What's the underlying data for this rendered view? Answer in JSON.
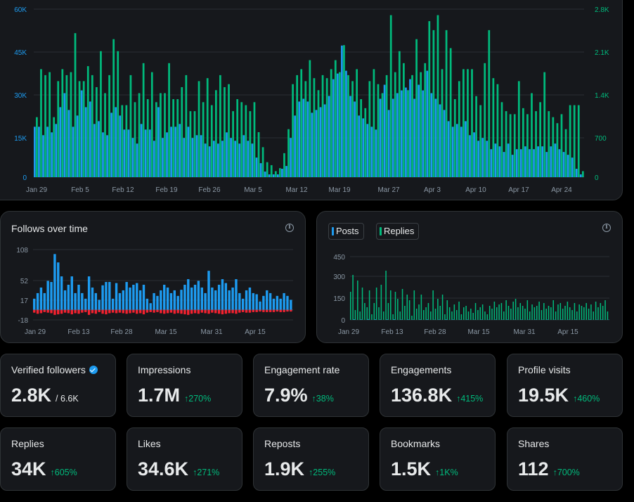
{
  "main_chart": {
    "chart_data": {
      "type": "bar",
      "x_ticks": [
        "Jan 29",
        "Feb 5",
        "Feb 12",
        "Feb 19",
        "Feb 26",
        "Mar 5",
        "Mar 12",
        "Mar 19",
        "Mar 27",
        "Apr 3",
        "Apr 10",
        "Apr 17",
        "Apr 24"
      ],
      "y_left_ticks": [
        "60K",
        "45K",
        "30K",
        "15K",
        "0"
      ],
      "y_right_ticks": [
        "2.8K",
        "2.1K",
        "1.4K",
        "700",
        "0"
      ],
      "y_left_range": [
        0,
        60000
      ],
      "y_right_range": [
        0,
        2800
      ],
      "series": [
        {
          "color": "#1d9bf0",
          "axis": "left",
          "values": [
            18000,
            18000,
            15000,
            18000,
            16000,
            19000,
            25000,
            30000,
            24000,
            18000,
            22000,
            31000,
            25000,
            27000,
            19000,
            20000,
            16000,
            15000,
            23000,
            25000,
            22000,
            17000,
            17000,
            14000,
            12000,
            19000,
            17000,
            17000,
            13000,
            25000,
            14000,
            16000,
            18000,
            18000,
            19000,
            14000,
            18000,
            14000,
            15000,
            15000,
            12000,
            11000,
            13000,
            12000,
            13000,
            16000,
            14000,
            13000,
            12000,
            15000,
            13000,
            12000,
            7000,
            5000,
            2000,
            1000,
            1000,
            1000,
            3000,
            4000,
            14000,
            22000,
            27000,
            28000,
            27000,
            23000,
            24000,
            25000,
            26000,
            29000,
            35000,
            37000,
            47000,
            38000,
            29000,
            27000,
            22000,
            21000,
            19000,
            18000,
            17000,
            28000,
            33000,
            24000,
            28000,
            30000,
            31000,
            32000,
            35000,
            28000,
            33000,
            31000,
            38000,
            30000,
            28000,
            26000,
            24000,
            20000,
            18000,
            19000,
            18000,
            20000,
            15000,
            16000,
            13000,
            14000,
            13000,
            10000,
            12000,
            11000,
            9000,
            12000,
            8000,
            10000,
            10000,
            11000,
            10000,
            10000,
            11000,
            11000,
            9000,
            11000,
            12000,
            10000,
            9000,
            8000,
            7000,
            3000,
            1000
          ]
        },
        {
          "color": "#00ba7c",
          "axis": "right",
          "values": [
            1000,
            1800,
            1700,
            1750,
            1000,
            1600,
            1800,
            1700,
            1750,
            2400,
            1600,
            1600,
            1850,
            1700,
            1500,
            2100,
            1400,
            1700,
            2300,
            2100,
            1200,
            1200,
            1700,
            1250,
            1400,
            1900,
            1300,
            1750,
            1250,
            1400,
            1400,
            1900,
            1300,
            1300,
            1500,
            1700,
            1100,
            1100,
            1600,
            1250,
            1650,
            1200,
            1450,
            1700,
            1500,
            1550,
            1100,
            1300,
            1250,
            1200,
            1100,
            1250,
            750,
            500,
            250,
            200,
            100,
            150,
            400,
            800,
            1550,
            1700,
            1800,
            1600,
            1950,
            1650,
            1450,
            1700,
            1650,
            1800,
            1950,
            1750,
            2200,
            1700,
            1600,
            1800,
            1300,
            1150,
            1600,
            1800,
            1550,
            1400,
            1700,
            2700,
            1750,
            2100,
            1900,
            1450,
            1700,
            2300,
            1750,
            1900,
            2600,
            2450,
            2700,
            1800,
            2450,
            2150,
            1300,
            1600,
            1800,
            1800,
            1800,
            1350,
            1200,
            1900,
            2450,
            1650,
            1550,
            1250,
            1100,
            1050,
            1050,
            1600,
            1150,
            1050,
            1400,
            1100,
            1250,
            1750,
            1100,
            1000,
            900,
            1050,
            800,
            1200,
            1200,
            1200,
            100
          ]
        }
      ]
    }
  },
  "follows_chart": {
    "title": "Follows over time",
    "chart_data": {
      "type": "bar",
      "x_ticks": [
        "Jan 29",
        "Feb 13",
        "Feb 28",
        "Mar 15",
        "Mar 31",
        "Apr 15"
      ],
      "y_ticks": [
        "108",
        "52",
        "17",
        "-18"
      ],
      "y_range": [
        -18,
        108
      ],
      "series": [
        {
          "color": "#1d9bf0",
          "values": [
            20,
            30,
            40,
            30,
            52,
            50,
            100,
            85,
            60,
            35,
            45,
            60,
            30,
            45,
            30,
            20,
            60,
            40,
            30,
            18,
            44,
            50,
            50,
            20,
            48,
            30,
            35,
            50,
            40,
            45,
            48,
            35,
            45,
            20,
            12,
            30,
            25,
            35,
            45,
            40,
            30,
            35,
            25,
            36,
            45,
            55,
            40,
            45,
            52,
            40,
            30,
            70,
            40,
            35,
            45,
            55,
            48,
            35,
            40,
            55,
            30,
            20,
            35,
            40,
            30,
            28,
            15,
            25,
            35,
            30,
            20,
            25,
            20,
            30,
            25,
            18
          ]
        },
        {
          "color": "#f4212e",
          "values": [
            -5,
            -7,
            -6,
            -4,
            -5,
            -6,
            -9,
            -8,
            -7,
            -5,
            -6,
            -8,
            -6,
            -7,
            -5,
            -4,
            -9,
            -6,
            -7,
            -4,
            -7,
            -8,
            -6,
            -5,
            -6,
            -5,
            -6,
            -7,
            -6,
            -5,
            -7,
            -6,
            -8,
            -5,
            -4,
            -5,
            -4,
            -6,
            -7,
            -6,
            -5,
            -7,
            -6,
            -7,
            -8,
            -9,
            -7,
            -6,
            -7,
            -5,
            -6,
            -7,
            -5,
            -6,
            -7,
            -8,
            -7,
            -6,
            -6,
            -7,
            -5,
            -4,
            -5,
            -5,
            -4,
            -4,
            -3,
            -4,
            -4,
            -4,
            -4,
            -3,
            -4,
            -4,
            -3,
            -3
          ]
        }
      ]
    }
  },
  "posts_replies_chart": {
    "legend": [
      {
        "label": "Posts",
        "color": "#1d9bf0"
      },
      {
        "label": "Replies",
        "color": "#00ba7c"
      }
    ],
    "chart_data": {
      "type": "bar",
      "x_ticks": [
        "Jan 29",
        "Feb 13",
        "Feb 28",
        "Mar 15",
        "Mar 31",
        "Apr 15"
      ],
      "y_ticks": [
        "450",
        "300",
        "150",
        "0"
      ],
      "y_range": [
        0,
        450
      ],
      "series": [
        {
          "color": "#1d9bf0",
          "values": [
            0,
            5,
            0,
            0,
            4,
            0,
            0,
            6,
            0,
            0,
            5,
            0,
            3,
            0,
            0,
            4,
            0,
            0,
            5,
            0,
            0,
            3,
            0,
            0,
            4,
            0,
            2,
            0,
            0,
            3,
            0,
            0,
            4,
            0,
            0,
            2,
            0,
            3,
            0,
            0,
            4,
            0,
            0,
            3,
            0,
            0,
            2,
            0,
            0,
            3,
            0,
            0,
            2,
            0,
            0,
            3,
            0,
            0,
            2,
            0,
            0,
            3,
            0,
            0,
            2,
            0,
            3,
            0,
            0,
            2,
            0,
            0,
            3,
            0,
            0,
            2,
            0,
            0,
            3,
            0,
            0,
            2,
            0,
            3,
            0,
            0,
            2,
            0,
            0,
            3,
            0,
            0,
            2,
            0,
            0,
            3,
            0,
            0,
            2,
            0,
            0,
            3,
            0,
            0,
            2,
            0,
            3,
            0,
            0,
            2
          ]
        },
        {
          "color": "#00ba7c",
          "values": [
            200,
            320,
            70,
            280,
            60,
            230,
            120,
            90,
            210,
            40,
            120,
            230,
            90,
            250,
            60,
            350,
            120,
            210,
            40,
            200,
            150,
            60,
            220,
            100,
            180,
            140,
            30,
            210,
            80,
            110,
            180,
            70,
            90,
            120,
            60,
            210,
            80,
            150,
            100,
            180,
            40,
            140,
            90,
            60,
            110,
            70,
            130,
            40,
            90,
            100,
            60,
            80,
            50,
            120,
            70,
            90,
            110,
            60,
            40,
            100,
            80,
            130,
            90,
            110,
            120,
            60,
            140,
            100,
            80,
            130,
            150,
            90,
            120,
            100,
            80,
            140,
            60,
            110,
            90,
            100,
            130,
            70,
            120,
            80,
            100,
            90,
            140,
            60,
            110,
            120,
            80,
            100,
            130,
            90,
            70,
            120,
            60,
            110,
            100,
            90,
            120,
            80,
            110,
            60,
            130,
            90,
            120,
            100,
            140,
            60
          ]
        }
      ]
    }
  },
  "stats": [
    {
      "label": "Verified followers",
      "value": "2.8K",
      "total": "/ 6.6K",
      "verified": true
    },
    {
      "label": "Impressions",
      "value": "1.7M",
      "change": "↑270%"
    },
    {
      "label": "Engagement rate",
      "value": "7.9%",
      "change": "↑38%"
    },
    {
      "label": "Engagements",
      "value": "136.8K",
      "change": "↑415%"
    },
    {
      "label": "Profile visits",
      "value": "19.5K",
      "change": "↑460%"
    },
    {
      "label": "Replies",
      "value": "34K",
      "change": "↑605%"
    },
    {
      "label": "Likes",
      "value": "34.6K",
      "change": "↑271%"
    },
    {
      "label": "Reposts",
      "value": "1.9K",
      "change": "↑255%"
    },
    {
      "label": "Bookmarks",
      "value": "1.5K",
      "change": "↑1K%"
    },
    {
      "label": "Shares",
      "value": "112",
      "change": "↑700%"
    }
  ],
  "colors": {
    "posts": "#1d9bf0",
    "replies": "#00ba7c",
    "unfollows": "#f4212e",
    "axis_left": "#1d9bf0",
    "axis_right": "#00ba7c"
  }
}
